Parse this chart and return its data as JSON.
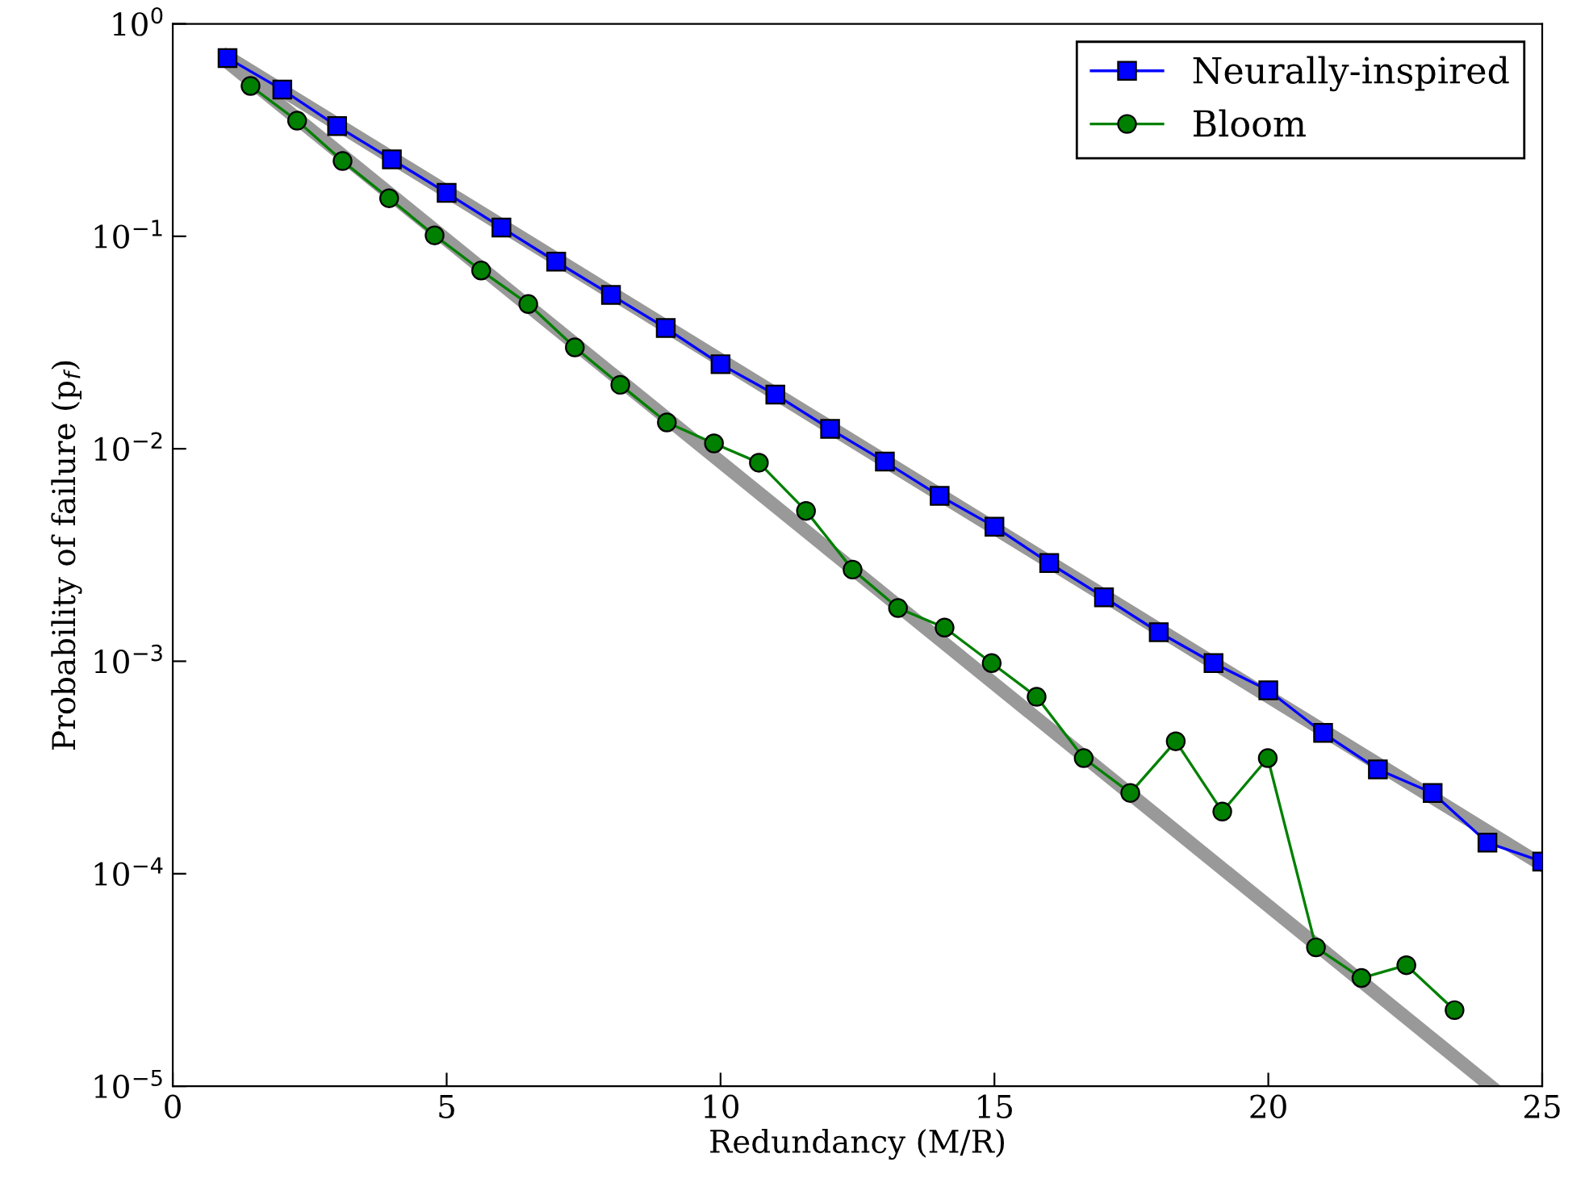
{
  "chart_data": {
    "type": "line",
    "xlabel": "Redundancy (M/R)",
    "ylabel": "Probability of failure (p$_{f}$)",
    "log": "y",
    "xlim": [
      0,
      25
    ],
    "ylim": [
      1e-05,
      1
    ],
    "xticks": [
      0,
      5,
      10,
      15,
      20,
      25
    ],
    "yticks": [
      {
        "value": 1e-05,
        "label": "10$^{−5}$"
      },
      {
        "value": 0.0001,
        "label": "10$^{−4}$"
      },
      {
        "value": 0.001,
        "label": "10$^{−3}$"
      },
      {
        "value": 0.01,
        "label": "10$^{−2}$"
      },
      {
        "value": 0.1,
        "label": "10$^{−1}$"
      },
      {
        "value": 1,
        "label": "10$^{0}$"
      }
    ],
    "legend": "top right",
    "grid": false,
    "series": [
      {
        "color": "#999999",
        "marker": "none",
        "x": [
          1,
          25
        ],
        "values": [
          0.7,
          0.00011
        ]
      },
      {
        "color": "#999999",
        "marker": "none",
        "x": [
          1,
          24.06
        ],
        "values": [
          0.66,
          1e-05
        ]
      },
      {
        "name": "Neurally-inspired",
        "color": "#0000ff",
        "marker": "square",
        "x": [
          1,
          2,
          3,
          4,
          5,
          6,
          7,
          8,
          9,
          10,
          11,
          12,
          13,
          14,
          15,
          16,
          17,
          18,
          19,
          20,
          21,
          22,
          23,
          24,
          25
        ],
        "values": [
          0.69,
          0.49,
          0.33,
          0.23,
          0.16,
          0.11,
          0.076,
          0.053,
          0.037,
          0.025,
          0.018,
          0.0124,
          0.0087,
          0.006,
          0.0043,
          0.0029,
          0.002,
          0.00137,
          0.00098,
          0.00073,
          0.00046,
          0.00031,
          0.00024,
          0.00014,
          0.000114
        ]
      },
      {
        "name": "Bloom",
        "color": "#008000",
        "marker": "circle",
        "x": [
          1.42,
          2.27,
          3.1,
          3.95,
          4.78,
          5.63,
          6.49,
          7.34,
          8.17,
          9.02,
          9.88,
          10.7,
          11.56,
          12.41,
          13.24,
          14.09,
          14.95,
          15.77,
          16.63,
          17.48,
          18.31,
          19.16,
          19.99,
          20.87,
          21.7,
          22.52,
          23.4
        ],
        "values": [
          0.51,
          0.35,
          0.226,
          0.151,
          0.101,
          0.069,
          0.048,
          0.03,
          0.02,
          0.0133,
          0.0106,
          0.0086,
          0.0051,
          0.0027,
          0.00178,
          0.00144,
          0.00098,
          0.00068,
          0.00035,
          0.00024,
          0.00042,
          0.000196,
          0.00035,
          4.5e-05,
          3.23e-05,
          3.71e-05,
          2.28e-05
        ]
      }
    ]
  }
}
